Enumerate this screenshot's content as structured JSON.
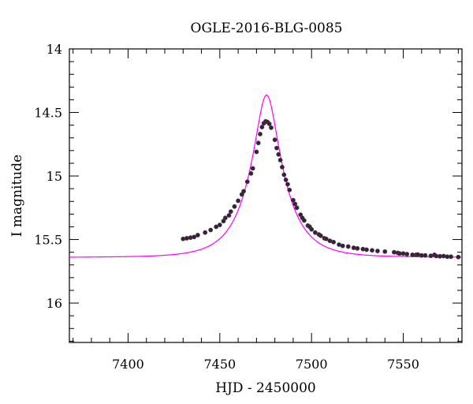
{
  "chart_data": {
    "type": "scatter",
    "title": "OGLE-2016-BLG-0085",
    "xlabel": "HJD - 2450000",
    "ylabel": "I magnitude",
    "xlim": [
      7368,
      7582
    ],
    "ylim": [
      16.31,
      14.0
    ],
    "y_inverted": true,
    "grid": false,
    "legend": "none",
    "x_major_ticks": [
      7400,
      7450,
      7500,
      7550
    ],
    "x_minor_step": 10,
    "y_major_ticks": [
      14,
      14.5,
      15,
      15.5,
      16
    ],
    "y_minor_step": 0.1,
    "x_tick_labels": [
      "7400",
      "7450",
      "7500",
      "7550"
    ],
    "y_tick_labels": [
      "14",
      "14.5",
      "15",
      "15.5",
      "16"
    ],
    "model": {
      "type": "line",
      "color": "#ff00ff",
      "t0": 7475.5,
      "tE": 18,
      "u0": 0.32,
      "I_base": 15.64
    },
    "series": [
      {
        "marker_color": "#2a2a2a",
        "x": [
          7430,
          7432,
          7434,
          7436,
          7438,
          7442,
          7445,
          7448,
          7450,
          7452,
          7453,
          7455,
          7456,
          7458,
          7460,
          7462,
          7463,
          7465,
          7467,
          7468,
          7470,
          7471,
          7472,
          7473,
          7474,
          7475,
          7476,
          7477,
          7478,
          7480,
          7481,
          7482,
          7483,
          7484,
          7485,
          7486,
          7487,
          7488,
          7490,
          7491,
          7492,
          7494,
          7495,
          7496,
          7498,
          7499,
          7500,
          7502,
          7504,
          7505,
          7507,
          7508,
          7510,
          7512,
          7515,
          7517,
          7520,
          7523,
          7525,
          7528,
          7530,
          7533,
          7536,
          7540,
          7545,
          7547,
          7548,
          7550,
          7552,
          7555,
          7557,
          7558,
          7560,
          7562,
          7565,
          7567,
          7568,
          7570,
          7572,
          7574,
          7576,
          7580
        ],
        "y": [
          15.495,
          15.49,
          15.485,
          15.48,
          15.465,
          15.445,
          15.425,
          15.4,
          15.385,
          15.355,
          15.33,
          15.31,
          15.28,
          15.24,
          15.195,
          15.145,
          15.12,
          15.045,
          14.98,
          14.94,
          14.81,
          14.74,
          14.67,
          14.615,
          14.585,
          14.57,
          14.575,
          14.59,
          14.62,
          14.715,
          14.78,
          14.83,
          14.875,
          14.93,
          14.99,
          15.03,
          15.065,
          15.11,
          15.19,
          15.22,
          15.25,
          15.305,
          15.33,
          15.35,
          15.39,
          15.4,
          15.42,
          15.445,
          15.46,
          15.47,
          15.49,
          15.495,
          15.51,
          15.52,
          15.54,
          15.55,
          15.555,
          15.565,
          15.57,
          15.575,
          15.58,
          15.585,
          15.59,
          15.595,
          15.6,
          15.605,
          15.61,
          15.61,
          15.615,
          15.62,
          15.62,
          15.618,
          15.625,
          15.625,
          15.628,
          15.62,
          15.63,
          15.632,
          15.63,
          15.635,
          15.635,
          15.638
        ]
      }
    ]
  }
}
